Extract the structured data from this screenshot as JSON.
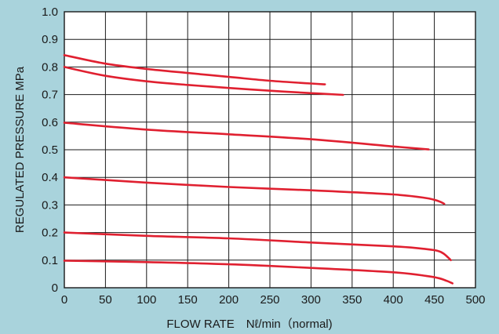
{
  "chart_data": {
    "type": "line",
    "xlabel": "FLOW RATE　Nℓ/min（normal)",
    "ylabel": "REGULATED PRESSURE  MPa",
    "xlim": [
      0,
      500
    ],
    "ylim": [
      0,
      1.0
    ],
    "x_ticks": [
      "0",
      "50",
      "100",
      "150",
      "200",
      "250",
      "300",
      "350",
      "400",
      "450",
      "500"
    ],
    "y_ticks": [
      "0",
      "0.1",
      "0.2",
      "0.3",
      "0.4",
      "0.5",
      "0.6",
      "0.7",
      "0.8",
      "0.9",
      "1.0"
    ],
    "grid": true,
    "line_color": "#e02030",
    "background_color": "#a9d3dc",
    "series": [
      {
        "x": [
          0,
          50,
          100,
          150,
          200,
          250,
          300,
          317
        ],
        "y": [
          0.843,
          0.812,
          0.793,
          0.778,
          0.764,
          0.75,
          0.74,
          0.737
        ]
      },
      {
        "x": [
          0,
          50,
          100,
          150,
          200,
          250,
          300,
          339
        ],
        "y": [
          0.8,
          0.768,
          0.748,
          0.735,
          0.724,
          0.714,
          0.705,
          0.699
        ]
      },
      {
        "x": [
          0,
          100,
          200,
          300,
          400,
          443
        ],
        "y": [
          0.598,
          0.573,
          0.556,
          0.538,
          0.512,
          0.501
        ]
      },
      {
        "x": [
          0,
          100,
          200,
          300,
          400,
          440,
          455,
          462
        ],
        "y": [
          0.4,
          0.381,
          0.365,
          0.353,
          0.338,
          0.325,
          0.314,
          0.304
        ]
      },
      {
        "x": [
          0,
          100,
          200,
          300,
          400,
          440,
          455,
          462,
          470
        ],
        "y": [
          0.2,
          0.188,
          0.179,
          0.164,
          0.15,
          0.14,
          0.133,
          0.122,
          0.1
        ]
      },
      {
        "x": [
          0,
          100,
          200,
          300,
          400,
          440,
          455,
          465,
          472
        ],
        "y": [
          0.098,
          0.093,
          0.085,
          0.072,
          0.056,
          0.043,
          0.035,
          0.025,
          0.016
        ]
      }
    ]
  }
}
